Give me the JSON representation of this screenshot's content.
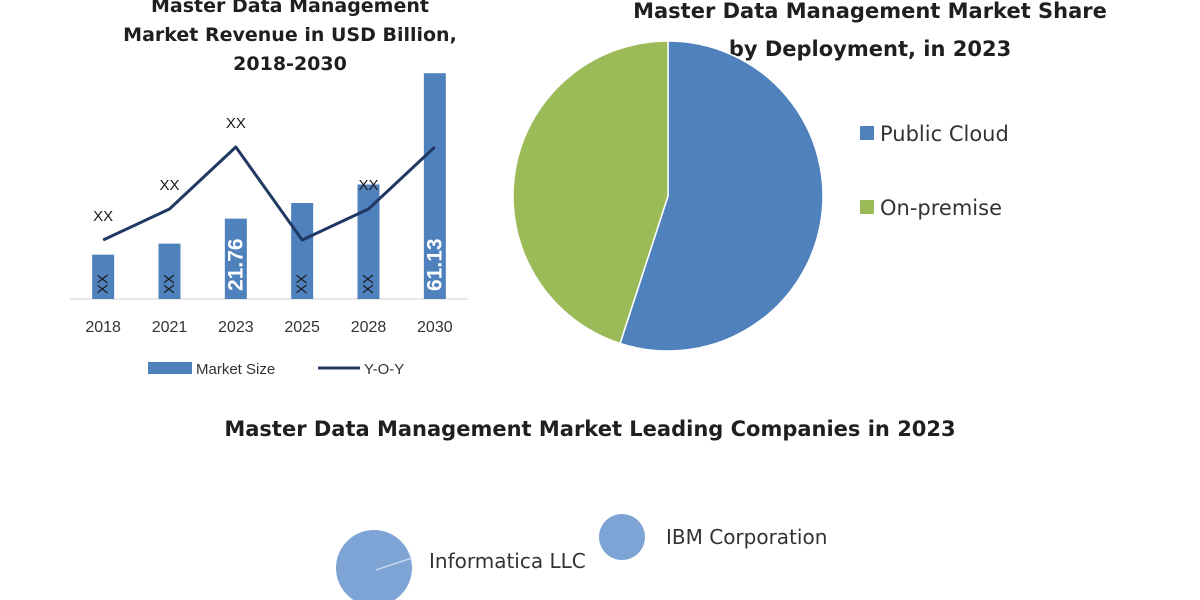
{
  "charts": {
    "revenue": {
      "title_lines": [
        "Master Data Management",
        "Market Revenue in USD Billion,",
        "2018-2030"
      ]
    },
    "deployment": {
      "title_lines": [
        "Master Data Management Market Share",
        "by Deployment, in 2023"
      ]
    },
    "companies": {
      "title": "Master Data Management Market Leading Companies in 2023"
    }
  },
  "chart_data": [
    {
      "type": "bar",
      "categories": [
        "2018",
        "2021",
        "2023",
        "2025",
        "2028",
        "2030"
      ],
      "series": [
        {
          "name": "Market Size",
          "values": [
            12,
            15,
            21.76,
            26,
            31,
            61.13
          ],
          "labels": [
            "XX",
            "XX",
            "21.76",
            "XX",
            "XX",
            "61.13"
          ],
          "color": "#4f81bd"
        },
        {
          "name": "Y-O-Y",
          "type": "line",
          "values": [
            10,
            15,
            25,
            10,
            15,
            25
          ],
          "labels": [
            "XX",
            "XX",
            "XX",
            "",
            "XX",
            ""
          ],
          "color": "#1f3864"
        }
      ],
      "ylim": [
        0,
        62
      ],
      "legend": "bottom",
      "grid": false
    },
    {
      "type": "pie",
      "labels": [
        "Public Cloud",
        "On-premise"
      ],
      "values": [
        55,
        45
      ],
      "colors": [
        "#4f81bd",
        "#9bbb59"
      ],
      "legend": "right"
    },
    {
      "type": "bubble",
      "labels": [
        "Informatica LLC",
        "IBM Corporation"
      ],
      "sizes": [
        38,
        23
      ],
      "color": "#7ea4d6"
    }
  ]
}
